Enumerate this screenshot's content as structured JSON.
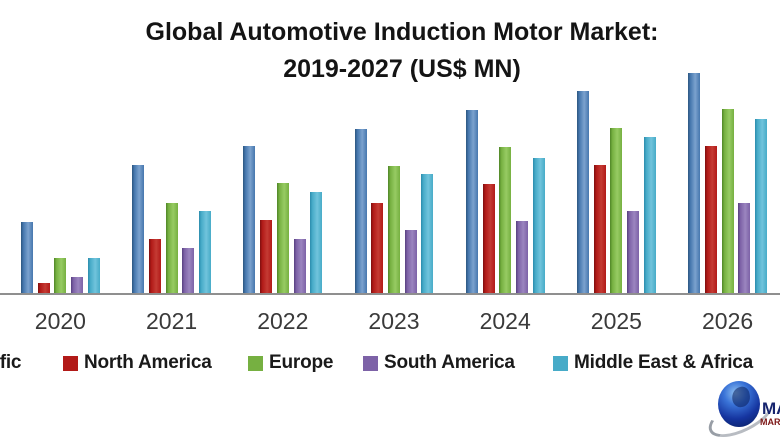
{
  "title": {
    "line1": "Global Automotive Induction Motor Market:",
    "line2": "2019-2027 (US$ MN)"
  },
  "chart_data": {
    "type": "bar",
    "title": "Global Automotive Induction Motor Market: 2019-2027 (US$ MN)",
    "xlabel": "",
    "ylabel": "",
    "value_unit": "US$ MN",
    "value_scale": "relative bar heights in screenshot pixels; y-axis with numeric scale is cropped out of view",
    "grid": false,
    "legend_position": "bottom",
    "visible_note": "chart cropped: 2019 group, y-axis and part of 'Asia Pacific' legend label cut off at left; 2027 group cut off at right",
    "categories": [
      "2020",
      "2021",
      "2022",
      "2023",
      "2024",
      "2025",
      "2026"
    ],
    "series": [
      {
        "name": "Asia Pacific",
        "visible_label_fragment": "cific",
        "color": "#4677AE",
        "color_dark": "#2C567F",
        "color_light": "#7BA2CE",
        "values": [
          72,
          129,
          148,
          165,
          184,
          203,
          221
        ]
      },
      {
        "name": "North America",
        "color": "#B21A18",
        "color_dark": "#7D0F0F",
        "color_light": "#C43B34",
        "values": [
          11,
          55,
          74,
          91,
          110,
          129,
          148
        ]
      },
      {
        "name": "Europe",
        "color": "#76B041",
        "color_dark": "#4F8526",
        "color_light": "#97CB63",
        "values": [
          36,
          91,
          111,
          128,
          147,
          166,
          185
        ]
      },
      {
        "name": "South America",
        "color": "#7D62A7",
        "color_dark": "#574080",
        "color_light": "#9B85BF",
        "values": [
          17,
          46,
          55,
          64,
          73,
          83,
          91
        ]
      },
      {
        "name": "Middle East & Africa",
        "color": "#47ABC8",
        "color_dark": "#2B8CAC",
        "color_light": "#71C4DC",
        "values": [
          36,
          83,
          102,
          120,
          136,
          157,
          175
        ]
      }
    ]
  },
  "axis": {
    "line_color": "#8f8f8f"
  },
  "logo": {
    "text_line1": "MA",
    "text_line2": "MAR"
  }
}
